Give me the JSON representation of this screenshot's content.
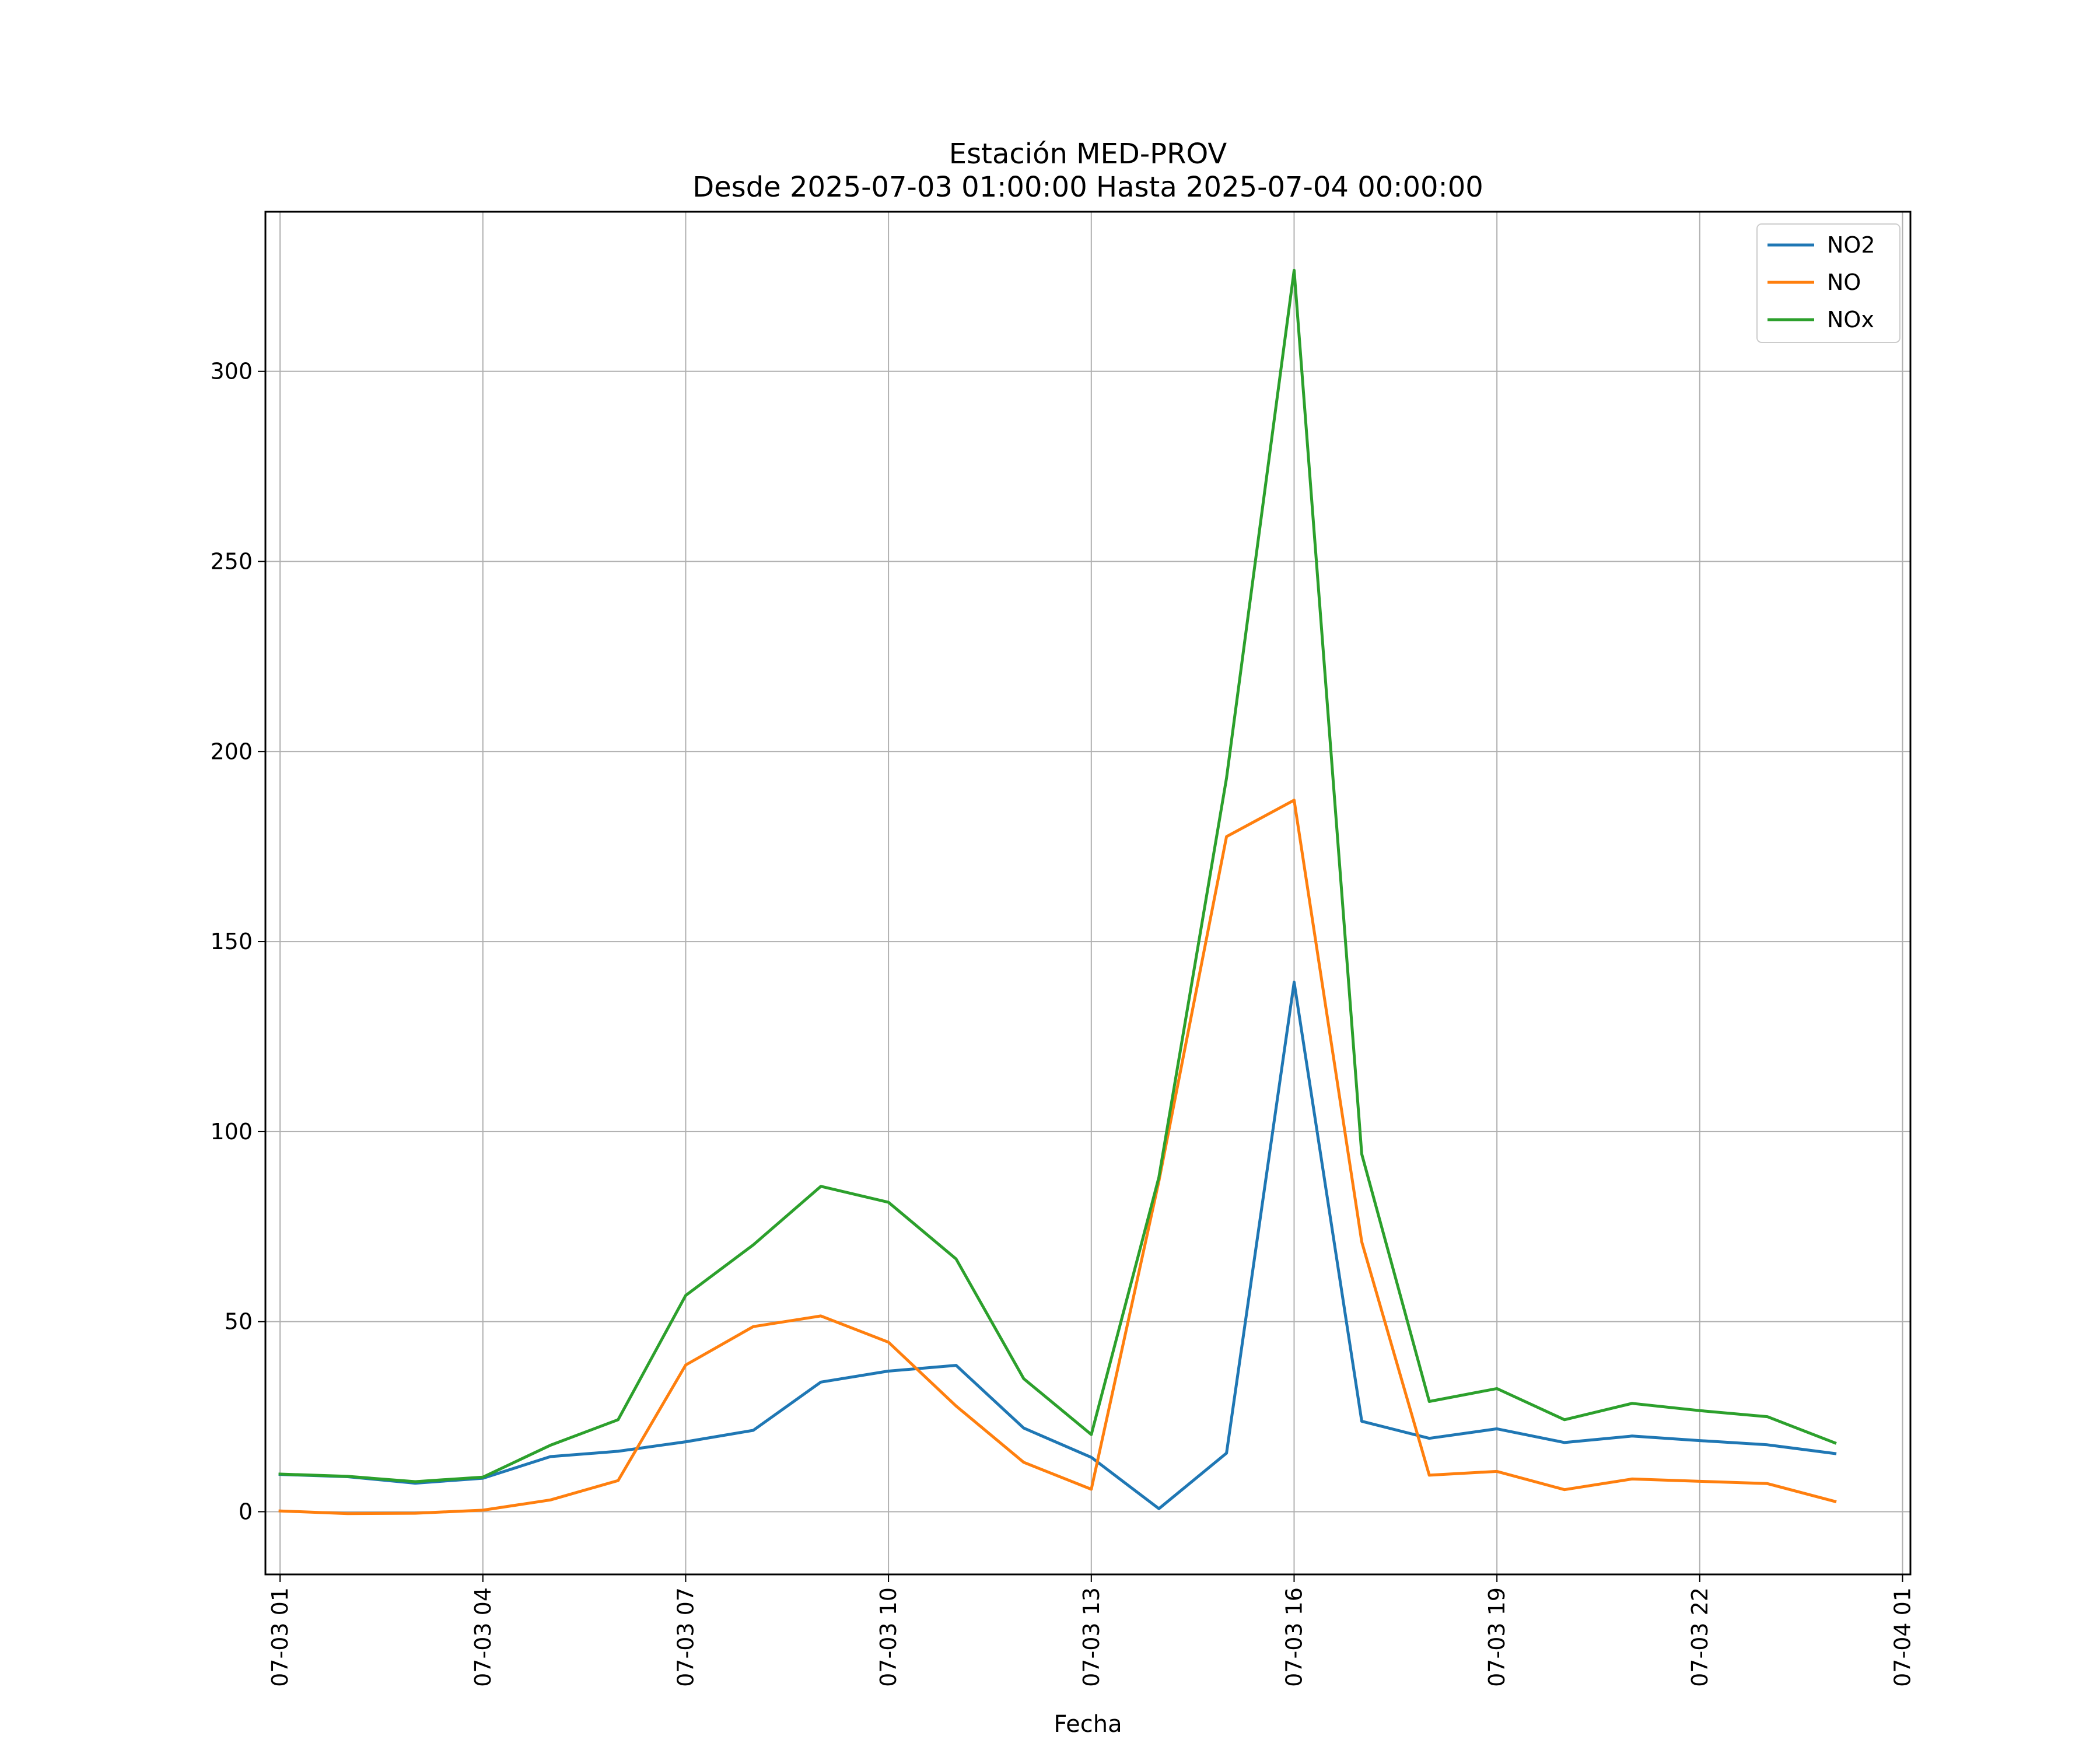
{
  "chart_data": {
    "type": "line",
    "title": [
      "Estación MED-PROV",
      "Desde 2025-07-03 01:00:00 Hasta 2025-07-04 00:00:00"
    ],
    "xlabel": "Fecha",
    "ylabel": "",
    "grid": true,
    "legend_position": "top-right",
    "x_tick_labels": [
      "07-03 01",
      "07-03 04",
      "07-03 07",
      "07-03 10",
      "07-03 13",
      "07-03 16",
      "07-03 19",
      "07-03 22",
      "07-04 01"
    ],
    "y_tick_labels": [
      "0",
      "50",
      "100",
      "150",
      "200",
      "250",
      "300"
    ],
    "x": [
      "2025-07-03 01:00",
      "2025-07-03 02:00",
      "2025-07-03 03:00",
      "2025-07-03 04:00",
      "2025-07-03 05:00",
      "2025-07-03 06:00",
      "2025-07-03 07:00",
      "2025-07-03 08:00",
      "2025-07-03 09:00",
      "2025-07-03 10:00",
      "2025-07-03 11:00",
      "2025-07-03 12:00",
      "2025-07-03 13:00",
      "2025-07-03 14:00",
      "2025-07-03 15:00",
      "2025-07-03 16:00",
      "2025-07-03 17:00",
      "2025-07-03 18:00",
      "2025-07-03 19:00",
      "2025-07-03 20:00",
      "2025-07-03 21:00",
      "2025-07-03 22:00",
      "2025-07-03 23:00",
      "2025-07-04 00:00"
    ],
    "xlim": [
      "2025-07-03 00:47",
      "2025-07-04 01:07"
    ],
    "ylim": [
      -16.5,
      342
    ],
    "series": [
      {
        "name": "NO2",
        "color": "#1f77b4",
        "values": [
          9.8,
          9.2,
          7.5,
          8.8,
          14.5,
          15.9,
          18.4,
          21.4,
          34.1,
          37.0,
          38.5,
          22.0,
          14.3,
          0.8,
          15.4,
          139.3,
          23.8,
          19.3,
          21.8,
          18.2,
          19.9,
          18.7,
          17.6,
          15.3
        ]
      },
      {
        "name": "NO",
        "color": "#ff7f0e",
        "values": [
          0.2,
          -0.5,
          -0.4,
          0.4,
          3.1,
          8.2,
          38.6,
          48.7,
          51.5,
          44.6,
          27.8,
          13.0,
          5.9,
          87.0,
          177.6,
          187.2,
          71.0,
          9.6,
          10.6,
          5.8,
          8.6,
          8.0,
          7.4,
          2.7
        ]
      },
      {
        "name": "NOx",
        "color": "#2ca02c",
        "values": [
          9.9,
          9.3,
          7.9,
          9.1,
          17.5,
          24.2,
          56.9,
          70.2,
          85.6,
          81.4,
          66.5,
          35.0,
          20.3,
          88.0,
          193.0,
          326.6,
          94.1,
          29.0,
          32.4,
          24.2,
          28.5,
          26.6,
          25.0,
          18.1
        ]
      }
    ]
  }
}
